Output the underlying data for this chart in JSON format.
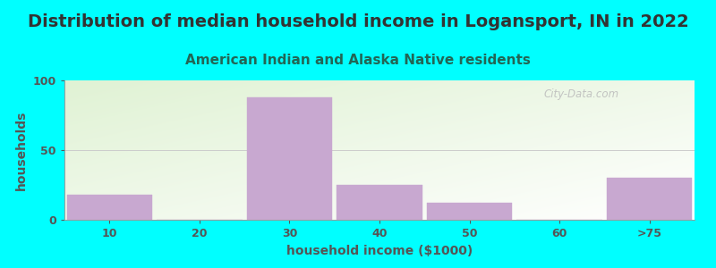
{
  "title": "Distribution of median household income in Logansport, IN in 2022",
  "subtitle": "American Indian and Alaska Native residents",
  "xlabel": "household income ($1000)",
  "ylabel": "households",
  "background_color": "#00FFFF",
  "bar_color": "#c8a8d0",
  "categories": [
    "10",
    "20",
    "30",
    "40",
    "50",
    "60",
    ">75"
  ],
  "values": [
    18,
    0,
    88,
    25,
    12,
    0,
    30
  ],
  "ylim": [
    0,
    100
  ],
  "yticks": [
    0,
    50,
    100
  ],
  "title_fontsize": 14,
  "subtitle_fontsize": 11,
  "axis_label_fontsize": 10,
  "tick_fontsize": 9,
  "watermark": "City-Data.com",
  "grid_color": "#cccccc",
  "title_color": "#333333",
  "subtitle_color": "#226655",
  "axis_label_color": "#555555",
  "tick_color": "#555555",
  "gradient_green": [
    0.878,
    0.949,
    0.831
  ],
  "gradient_white": [
    1.0,
    1.0,
    1.0
  ]
}
